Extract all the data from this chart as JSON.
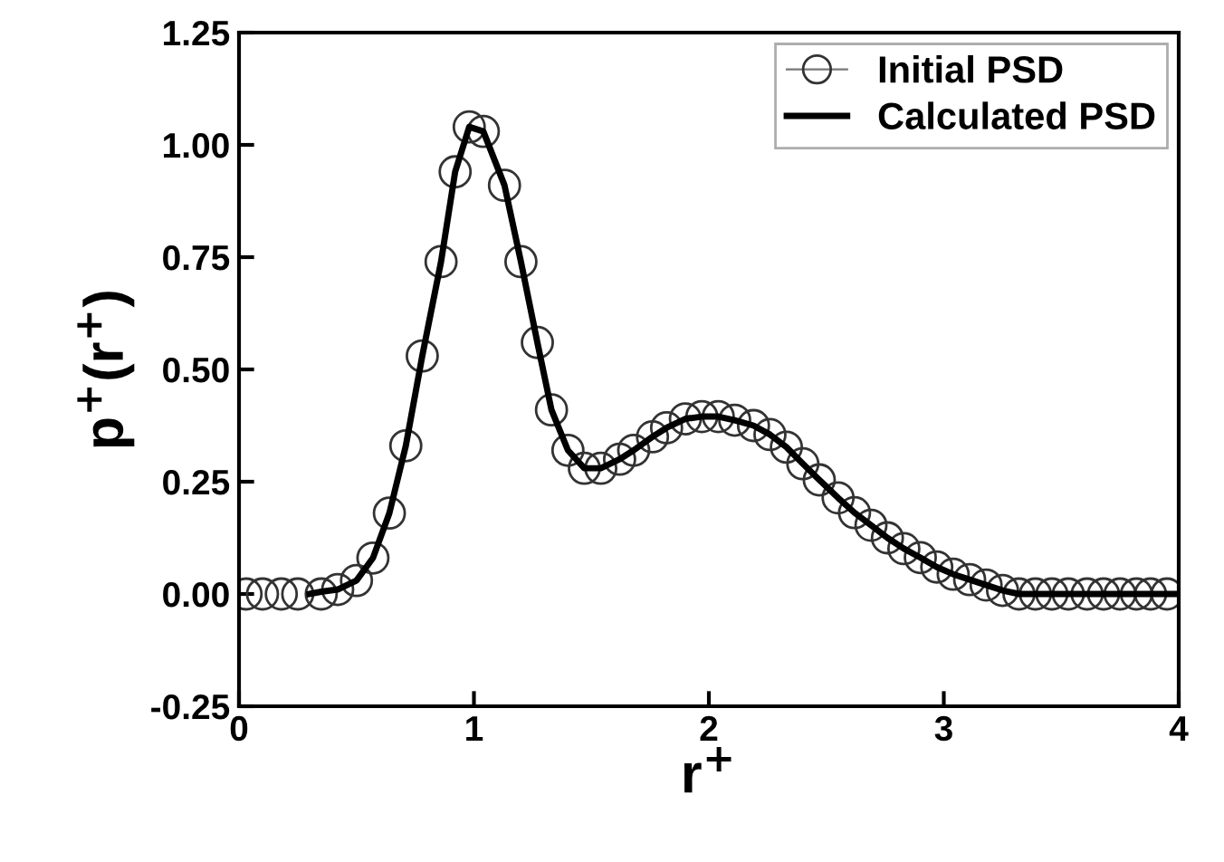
{
  "chart_data": {
    "type": "scatter",
    "xlabel": "r$^{+}$",
    "ylabel": "p$^{+}$(r$^{+}$)",
    "xlim": [
      0,
      4
    ],
    "ylim": [
      -0.25,
      1.25
    ],
    "xticks": [
      0,
      1,
      2,
      3,
      4
    ],
    "yticks": [
      {
        "value": -0.25,
        "label": "-0.25"
      },
      {
        "value": 0,
        "label": "0.00"
      },
      {
        "value": 0.25,
        "label": "0.25"
      },
      {
        "value": 0.5,
        "label": "0.50"
      },
      {
        "value": 0.75,
        "label": "0.75"
      },
      {
        "value": 1,
        "label": "1.00"
      },
      {
        "value": 1.25,
        "label": "1.25"
      }
    ],
    "grid": false,
    "legend": "top right",
    "series": [
      {
        "name": "Initial PSD",
        "marker": "circle",
        "color": "#333333",
        "x": [
          0.03,
          0.1,
          0.18,
          0.25,
          0.35,
          0.42,
          0.5,
          0.57,
          0.64,
          0.71,
          0.78,
          0.86,
          0.92,
          0.98,
          1.04,
          1.13,
          1.2,
          1.27,
          1.33,
          1.4,
          1.47,
          1.54,
          1.62,
          1.68,
          1.76,
          1.82,
          1.9,
          1.97,
          2.04,
          2.11,
          2.19,
          2.26,
          2.33,
          2.4,
          2.47,
          2.55,
          2.62,
          2.69,
          2.76,
          2.83,
          2.9,
          2.97,
          3.04,
          3.11,
          3.18,
          3.25,
          3.32,
          3.39,
          3.46,
          3.53,
          3.61,
          3.68,
          3.75,
          3.82,
          3.88,
          3.95
        ],
        "values": [
          0,
          0,
          0,
          0,
          0,
          0.01,
          0.03,
          0.08,
          0.18,
          0.33,
          0.53,
          0.74,
          0.94,
          1.04,
          1.03,
          0.91,
          0.74,
          0.56,
          0.41,
          0.32,
          0.28,
          0.28,
          0.3,
          0.32,
          0.35,
          0.37,
          0.39,
          0.395,
          0.395,
          0.387,
          0.375,
          0.355,
          0.327,
          0.29,
          0.254,
          0.214,
          0.181,
          0.153,
          0.125,
          0.101,
          0.081,
          0.06,
          0.044,
          0.032,
          0.02,
          0.008,
          0,
          0,
          0,
          0,
          0,
          0,
          0,
          0,
          0,
          0
        ]
      },
      {
        "name": "Calculated PSD",
        "type": "line",
        "marker": "none",
        "line_style": "solid",
        "color": "#000000",
        "x": [
          0.3,
          0.35,
          0.42,
          0.5,
          0.57,
          0.64,
          0.71,
          0.78,
          0.86,
          0.92,
          0.98,
          1.04,
          1.13,
          1.2,
          1.27,
          1.33,
          1.4,
          1.47,
          1.54,
          1.62,
          1.68,
          1.76,
          1.82,
          1.9,
          1.97,
          2.04,
          2.11,
          2.19,
          2.26,
          2.33,
          2.4,
          2.47,
          2.55,
          2.62,
          2.69,
          2.76,
          2.83,
          2.9,
          2.97,
          3.04,
          3.11,
          3.18,
          3.25,
          3.32,
          3.5,
          4.0
        ],
        "values": [
          0,
          0.005,
          0.01,
          0.03,
          0.08,
          0.18,
          0.33,
          0.53,
          0.74,
          0.94,
          1.04,
          1.03,
          0.91,
          0.74,
          0.56,
          0.41,
          0.32,
          0.28,
          0.28,
          0.3,
          0.32,
          0.35,
          0.37,
          0.39,
          0.395,
          0.395,
          0.387,
          0.375,
          0.355,
          0.327,
          0.29,
          0.254,
          0.214,
          0.181,
          0.153,
          0.125,
          0.101,
          0.081,
          0.06,
          0.044,
          0.032,
          0.02,
          0.008,
          0,
          0,
          0
        ]
      }
    ]
  }
}
